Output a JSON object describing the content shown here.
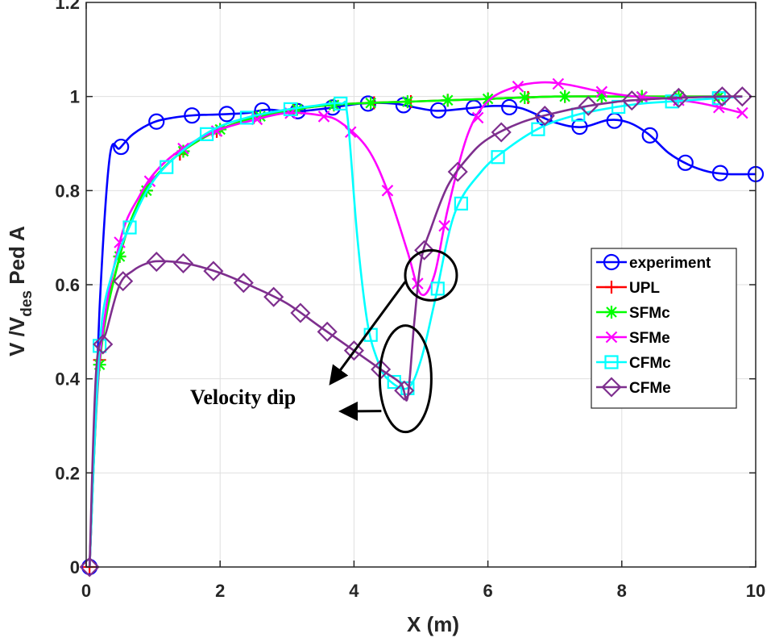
{
  "chart_data": {
    "type": "line",
    "title": "",
    "xlabel": "X (m)",
    "ylabel_parts": {
      "main": "V /V",
      "sub": "des",
      "suffix": "Ped A"
    },
    "xlim": [
      0,
      10
    ],
    "ylim": [
      0,
      1.2
    ],
    "xticks": [
      "0",
      "2",
      "4",
      "6",
      "8",
      "10"
    ],
    "yticks": [
      "0",
      "0.2",
      "0.4",
      "0.6",
      "0.8",
      "1"
    ],
    "ytick_top_partial": "1.2",
    "grid": true,
    "legend_position": "center-right",
    "series": [
      {
        "name": "experiment",
        "color": "#0000ff",
        "marker": "circle",
        "x": [
          0.05,
          0.2,
          0.35,
          0.5,
          0.7,
          1.0,
          1.3,
          1.6,
          2.0,
          2.4,
          2.7,
          3.1,
          3.6,
          4.1,
          4.6,
          5.2,
          5.7,
          6.1,
          6.5,
          7.0,
          7.4,
          7.8,
          8.1,
          8.4,
          8.7,
          9.0,
          9.3,
          9.6,
          10.0
        ],
        "y": [
          0,
          0.55,
          0.87,
          0.89,
          0.92,
          0.945,
          0.955,
          0.96,
          0.962,
          0.965,
          0.972,
          0.968,
          0.975,
          0.985,
          0.985,
          0.97,
          0.975,
          0.98,
          0.975,
          0.945,
          0.935,
          0.95,
          0.945,
          0.92,
          0.88,
          0.855,
          0.84,
          0.835,
          0.835
        ],
        "marker_x": [
          0.05,
          0.52,
          1.05,
          1.58,
          2.1,
          2.63,
          3.16,
          3.68,
          4.21,
          4.74,
          5.26,
          5.79,
          6.32,
          6.84,
          7.37,
          7.89,
          8.42,
          8.95,
          9.47,
          10.0
        ]
      },
      {
        "name": "UPL",
        "color": "#ff0000",
        "marker": "plus",
        "x": [
          0.05,
          0.2,
          0.5,
          0.8,
          1.1,
          1.5,
          2.0,
          2.5,
          3.0,
          3.5,
          4.0,
          5.0,
          6.0,
          7.0,
          8.0,
          9.0,
          9.8
        ],
        "y": [
          0,
          0.44,
          0.66,
          0.78,
          0.84,
          0.89,
          0.93,
          0.955,
          0.97,
          0.98,
          0.985,
          0.99,
          0.995,
          1.0,
          1.0,
          1.0,
          1.0
        ],
        "marker_x": [
          0.05,
          0.2,
          0.5,
          0.9,
          1.4,
          1.95,
          2.5,
          3.1,
          3.7,
          4.3,
          4.85,
          5.4,
          6.0,
          6.6,
          7.15,
          7.7,
          8.3,
          8.85,
          9.45
        ]
      },
      {
        "name": "SFMc",
        "color": "#00ff00",
        "marker": "asterisk",
        "x": [
          0.05,
          0.2,
          0.5,
          0.8,
          1.1,
          1.5,
          2.0,
          2.5,
          3.0,
          3.5,
          4.0,
          5.0,
          6.0,
          7.0,
          8.0,
          9.0,
          9.8
        ],
        "y": [
          0,
          0.43,
          0.66,
          0.78,
          0.84,
          0.89,
          0.93,
          0.955,
          0.97,
          0.98,
          0.985,
          0.99,
          0.995,
          1.0,
          1.0,
          1.0,
          1.0
        ],
        "marker_x": [
          0.2,
          0.5,
          0.9,
          1.45,
          2.0,
          2.6,
          3.15,
          3.7,
          4.25,
          4.8,
          5.4,
          6.0,
          6.55,
          7.15,
          7.7,
          8.3,
          8.85,
          9.45
        ]
      },
      {
        "name": "SFMe",
        "color": "#ff00ff",
        "marker": "x",
        "x": [
          0.05,
          0.2,
          0.5,
          0.8,
          1.1,
          1.5,
          2.0,
          2.5,
          3.0,
          3.5,
          3.8,
          4.2,
          4.5,
          4.8,
          5.0,
          5.2,
          5.4,
          5.7,
          6.0,
          6.4,
          6.8,
          7.2,
          7.7,
          8.2,
          8.7,
          9.2,
          9.8
        ],
        "y": [
          0,
          0.44,
          0.69,
          0.79,
          0.85,
          0.895,
          0.93,
          0.95,
          0.965,
          0.96,
          0.945,
          0.89,
          0.8,
          0.67,
          0.58,
          0.62,
          0.76,
          0.92,
          0.99,
          1.02,
          1.03,
          1.025,
          1.01,
          1.0,
          0.995,
          0.985,
          0.965
        ],
        "marker_x": [
          0.5,
          0.95,
          1.45,
          1.95,
          2.55,
          3.05,
          3.55,
          3.95,
          4.5,
          4.95,
          5.35,
          5.85,
          6.45,
          7.05,
          7.7,
          8.3,
          8.85,
          9.45,
          9.8
        ]
      },
      {
        "name": "CFMc",
        "color": "#00ffff",
        "marker": "square",
        "x": [
          0.05,
          0.2,
          0.4,
          0.7,
          1.0,
          1.4,
          1.9,
          2.4,
          2.9,
          3.4,
          3.8,
          3.9,
          4.05,
          4.2,
          4.35,
          4.5,
          4.8,
          5.0,
          5.2,
          5.5,
          5.9,
          6.3,
          6.8,
          7.3,
          7.8,
          8.3,
          8.8,
          9.3,
          9.8
        ],
        "y": [
          0,
          0.47,
          0.63,
          0.74,
          0.82,
          0.88,
          0.93,
          0.955,
          0.97,
          0.98,
          0.985,
          0.96,
          0.7,
          0.52,
          0.44,
          0.4,
          0.38,
          0.44,
          0.56,
          0.75,
          0.84,
          0.89,
          0.935,
          0.96,
          0.975,
          0.985,
          0.99,
          0.995,
          1.0
        ],
        "marker_x": [
          0.2,
          0.65,
          1.2,
          1.8,
          2.4,
          3.05,
          3.8,
          4.25,
          4.6,
          4.8,
          5.25,
          5.6,
          6.15,
          6.75,
          7.35,
          7.95,
          8.75,
          9.45
        ]
      },
      {
        "name": "CFMe",
        "color": "#7e2f8e",
        "marker": "diamond",
        "x": [
          0.05,
          0.15,
          0.3,
          0.5,
          0.7,
          0.9,
          1.1,
          1.5,
          2.0,
          2.5,
          3.0,
          3.5,
          4.0,
          4.4,
          4.7,
          4.8,
          4.9,
          5.0,
          5.15,
          5.4,
          5.7,
          6.0,
          6.5,
          7.0,
          7.5,
          8.0,
          8.5,
          9.0,
          9.5,
          9.8
        ],
        "y": [
          0,
          0.42,
          0.5,
          0.6,
          0.63,
          0.645,
          0.65,
          0.645,
          0.625,
          0.595,
          0.56,
          0.51,
          0.46,
          0.42,
          0.39,
          0.36,
          0.52,
          0.65,
          0.72,
          0.81,
          0.87,
          0.91,
          0.945,
          0.965,
          0.98,
          0.99,
          0.995,
          0.998,
          1.0,
          1.0
        ],
        "marker_x": [
          0.05,
          0.25,
          0.55,
          1.05,
          1.45,
          1.9,
          2.35,
          2.8,
          3.2,
          3.6,
          4.0,
          4.4,
          4.75,
          5.05,
          5.55,
          6.2,
          6.85,
          7.5,
          8.15,
          8.85,
          9.5,
          9.8
        ]
      }
    ],
    "annotations": [
      {
        "text": "Velocity dip",
        "targets": [
          {
            "x": 5.15,
            "y": 0.62
          },
          {
            "x": 4.77,
            "y": 0.4
          }
        ]
      }
    ]
  }
}
